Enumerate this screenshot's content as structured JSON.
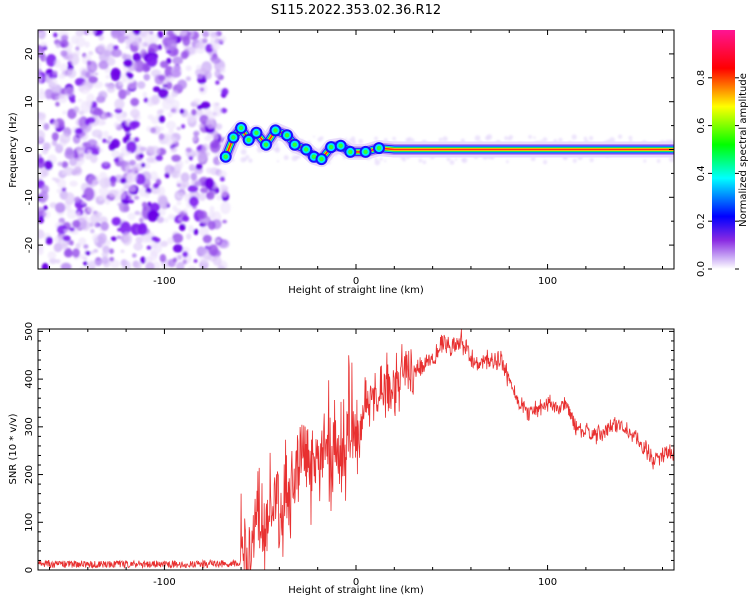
{
  "title": "S115.2022.353.02.36.R12",
  "chart_data": [
    {
      "type": "heatmap",
      "name": "spectrogram",
      "xlabel": "Height of straight line (km)",
      "ylabel": "Frequency (Hz)",
      "xlim": [
        -166,
        166
      ],
      "ylim": [
        -25,
        25
      ],
      "xticks": [
        -100,
        0,
        100
      ],
      "xtick_labels": [
        "-100",
        "0",
        "100"
      ],
      "yticks": [
        20,
        10,
        0,
        -10,
        -20
      ],
      "ytick_labels": [
        "20",
        "10",
        "0",
        "-10",
        "-20"
      ],
      "noise_region_x": [
        -166,
        -68
      ],
      "track": [
        {
          "x": -68,
          "y": -1.5
        },
        {
          "x": -64,
          "y": 2.5
        },
        {
          "x": -60,
          "y": 4.5
        },
        {
          "x": -56,
          "y": 2.0
        },
        {
          "x": -52,
          "y": 3.5
        },
        {
          "x": -47,
          "y": 1.0
        },
        {
          "x": -42,
          "y": 4.0
        },
        {
          "x": -36,
          "y": 3.0
        },
        {
          "x": -32,
          "y": 1.0
        },
        {
          "x": -26,
          "y": 0.0
        },
        {
          "x": -22,
          "y": -1.5
        },
        {
          "x": -18,
          "y": -2.0
        },
        {
          "x": -13,
          "y": 0.5
        },
        {
          "x": -8,
          "y": 0.8
        },
        {
          "x": -3,
          "y": -0.5
        },
        {
          "x": 5,
          "y": -0.5
        },
        {
          "x": 12,
          "y": 0.3
        },
        {
          "x": 20,
          "y": 0.0
        },
        {
          "x": 166,
          "y": 0.0
        }
      ],
      "colorbar": {
        "label": "Normalized spectral amplitude",
        "range": [
          0,
          1
        ],
        "ticks": [
          0.0,
          0.2,
          0.4,
          0.6,
          0.8
        ],
        "tick_labels": [
          "0.0",
          "0.2",
          "0.4",
          "0.6",
          "0.8"
        ],
        "colors": [
          "#ffffff",
          "#8a2be2",
          "#0000ff",
          "#00ffff",
          "#00ff00",
          "#ffff00",
          "#ff0000",
          "#ff1493"
        ]
      }
    },
    {
      "type": "line",
      "name": "snr",
      "xlabel": "Height of straight line (km)",
      "ylabel": "SNR (10 * v/v)",
      "xlim": [
        -166,
        166
      ],
      "ylim": [
        0,
        505
      ],
      "xticks": [
        -100,
        0,
        100
      ],
      "xtick_labels": [
        "-100",
        "0",
        "100"
      ],
      "yticks": [
        0,
        100,
        200,
        300,
        400,
        500
      ],
      "ytick_labels": [
        "0",
        "100",
        "200",
        "300",
        "400",
        "500"
      ],
      "color": "#e83030",
      "series": [
        {
          "x": [
            -166,
            -120,
            -80,
            -60,
            -55,
            -50,
            -45,
            -40,
            -35,
            -30,
            -25,
            -20,
            -15,
            -10,
            -5,
            0,
            5,
            10,
            15,
            20,
            25,
            30,
            35,
            40,
            45,
            50,
            55,
            60,
            65,
            70,
            75,
            80,
            85,
            90,
            95,
            100,
            105,
            110,
            115,
            120,
            125,
            130,
            135,
            140,
            145,
            150,
            155,
            160,
            166
          ],
          "y": [
            12,
            12,
            12,
            15,
            40,
            100,
            140,
            130,
            170,
            220,
            250,
            230,
            270,
            240,
            300,
            270,
            330,
            360,
            380,
            380,
            400,
            410,
            430,
            450,
            470,
            460,
            480,
            440,
            430,
            440,
            440,
            400,
            350,
            330,
            340,
            350,
            340,
            345,
            300,
            290,
            280,
            290,
            305,
            300,
            280,
            260,
            230,
            240,
            250
          ]
        }
      ],
      "noise": [
        {
          "from": -166,
          "to": -60,
          "amp": 8
        },
        {
          "from": -60,
          "to": -25,
          "amp": 90
        },
        {
          "from": -25,
          "to": 0,
          "amp": 90
        },
        {
          "from": 0,
          "to": 30,
          "amp": 60
        },
        {
          "from": 30,
          "to": 80,
          "amp": 25
        },
        {
          "from": 80,
          "to": 166,
          "amp": 20
        }
      ]
    }
  ]
}
